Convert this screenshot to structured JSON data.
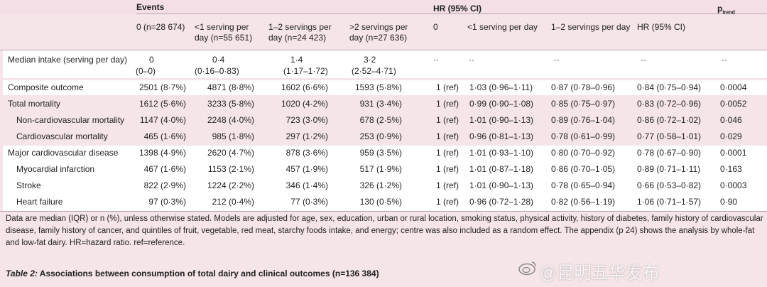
{
  "header": {
    "events_label": "Events",
    "hr_label": "HR (95% CI)",
    "ptrend_main": "p",
    "ptrend_sub": "trend",
    "events_cols": [
      "0 (n=28 674)",
      "<1 serving per day (n=55 651)",
      "1–2 servings per day (n=24 423)",
      ">2 servings per day (n=27 636)"
    ],
    "hr_cols": [
      "0",
      "<1 serving per day",
      "1–2 servings per day",
      "HR (95% CI)"
    ]
  },
  "median_row": {
    "label": "Median intake (serving per day)",
    "values": [
      "0",
      "0·4",
      "1·4",
      "3·2"
    ],
    "iqr": [
      "(0–0)",
      "(0·16–0·83)",
      "(1·17–1·72)",
      "(2·52–4·71)"
    ],
    "dots": [
      "··",
      "··",
      "··",
      "··",
      "··"
    ]
  },
  "rows": [
    {
      "label": "Composite outcome",
      "e": [
        "2501 (8·7%)",
        "4871 (8·8%)",
        "1602 (6·6%)",
        "1593 (5·8%)"
      ],
      "ref": "1 (ref)",
      "hr": [
        "1·03 (0·96–1·11)",
        "0·87 (0·78–0·96)",
        "0·84 (0·75–0·94)"
      ],
      "p": "0·0004"
    },
    {
      "label": "Total mortality",
      "e": [
        "1612 (5·6%)",
        "3233 (5·8%)",
        "1020 (4·2%)",
        "931 (3·4%)"
      ],
      "ref": "1 (ref)",
      "hr": [
        "0·99 (0·90–1·08)",
        "0·85 (0·75–0·97)",
        "0·83 (0·72–0·96)"
      ],
      "p": "0·0052"
    },
    {
      "label": "Non-cardiovascular mortality",
      "e": [
        "1147 (4·0%)",
        "2248 (4·0%)",
        "723 (3·0%)",
        "678 (2·5%)"
      ],
      "ref": "1 (ref)",
      "hr": [
        "1·01 (0·90–1·13)",
        "0·89 (0·76–1·04)",
        "0·86 (0·72–1·02)"
      ],
      "p": "0·046"
    },
    {
      "label": "Cardiovascular mortality",
      "e": [
        "465 (1·6%)",
        "985 (1·8%)",
        "297 (1·2%)",
        "253 (0·9%)"
      ],
      "ref": "1 (ref)",
      "hr": [
        "0·96 (0·81–1·13)",
        "0·78 (0·61–0·99)",
        "0·77 (0·58–1·01)"
      ],
      "p": "0·029"
    },
    {
      "label": "Major cardiovascular disease",
      "e": [
        "1398 (4·9%)",
        "2620 (4·7%)",
        "878 (3·6%)",
        "959 (3·5%)"
      ],
      "ref": "1 (ref)",
      "hr": [
        "1·01 (0·93–1·10)",
        "0·80 (0·70–0·92)",
        "0·78 (0·67–0·90)"
      ],
      "p": "0·0001"
    },
    {
      "label": "Myocardial infarction",
      "e": [
        "467 (1·6%)",
        "1153 (2·1%)",
        "457 (1·9%)",
        "517 (1·9%)"
      ],
      "ref": "1 (ref)",
      "hr": [
        "1·01 (0·87–1·18)",
        "0·86 (0·70–1·05)",
        "0·89 (0·71–1·11)"
      ],
      "p": "0·163"
    },
    {
      "label": "Stroke",
      "e": [
        "822 (2·9%)",
        "1224 (2·2%)",
        "346 (1·4%)",
        "326 (1·2%)"
      ],
      "ref": "1 (ref)",
      "hr": [
        "1·01 (0·90–1·13)",
        "0·78 (0·65–0·94)",
        "0·66 (0·53–0·82)"
      ],
      "p": "0·0003"
    },
    {
      "label": "Heart failure",
      "e": [
        "97 (0·3%)",
        "212 (0·4%)",
        "77 (0·3%)",
        "130 (0·5%)"
      ],
      "ref": "1 (ref)",
      "hr": [
        "0·96 (0·72–1·28)",
        "0·82 (0·56–1·19)",
        "1·06 (0·71–1·57)"
      ],
      "p": "0·90"
    }
  ],
  "footnote": "Data are median (IQR) or n (%), unless otherwise stated. Models are adjusted for age, sex, education, urban or rural location, smoking status, physical activity, history of diabetes, family history of cardiovascular disease, family history of cancer, and quintiles of fruit, vegetable, red meat, starchy foods intake, and energy; centre was also included as a random effect. The appendix (p 24) shows the analysis by whole-fat and low-fat dairy. HR=hazard ratio. ref=reference.",
  "caption": {
    "title": "Table 2:",
    "text": " Associations between consumption of total dairy and clinical outcomes (n=136 384)"
  },
  "watermark": "@昆明五华发布"
}
